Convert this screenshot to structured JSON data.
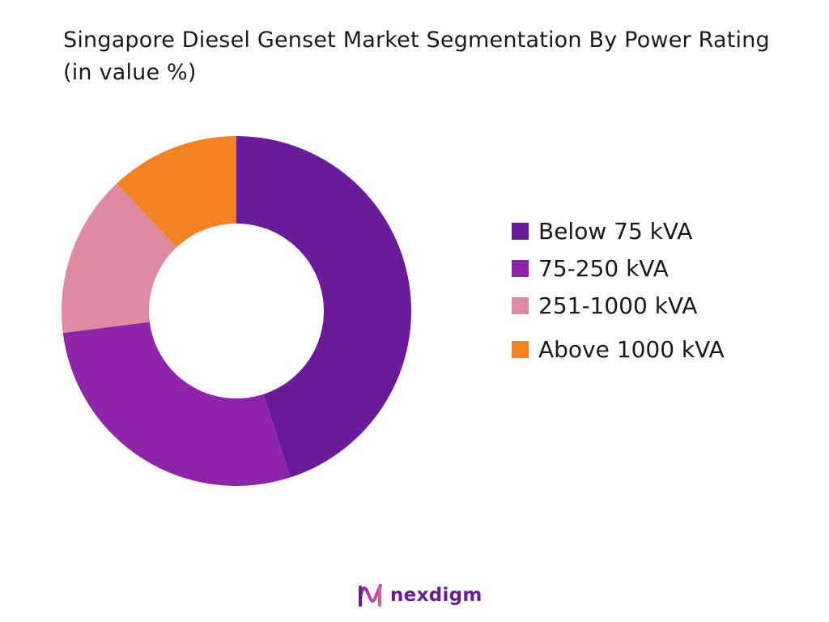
{
  "chart_data": {
    "type": "pie",
    "title": "Singapore Diesel Genset Market Segmentation By Power Rating (in value %)",
    "categories": [
      "Below 75 kVA",
      "75-250 kVA",
      "251-1000 kVA",
      "Above 1000 kVA"
    ],
    "values": [
      45,
      28,
      15,
      12
    ],
    "colors": [
      "#6a1b9a",
      "#8e24aa",
      "#de8aa0",
      "#f58220"
    ],
    "donut": true,
    "legend_position": "right"
  },
  "brand": {
    "name": "nexdigm"
  }
}
